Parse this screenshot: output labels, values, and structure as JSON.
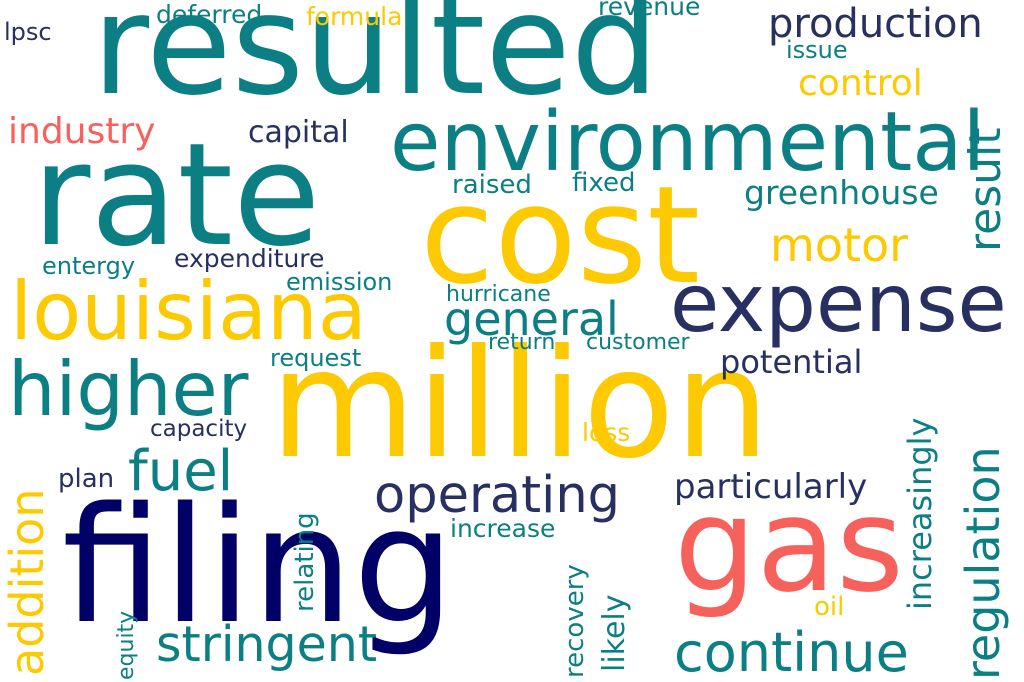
{
  "colors": {
    "teal": "#0b7f84",
    "yellow": "#fdc900",
    "navy": "#000066",
    "slate": "#273060",
    "coral": "#f7615c"
  },
  "words": {
    "resulted": "resulted",
    "rate": "rate",
    "cost": "cost",
    "million": "million",
    "filing": "filing",
    "gas": "gas",
    "environmental": "environmental",
    "louisiana": "louisiana",
    "expense": "expense",
    "higher": "higher",
    "operating": "operating",
    "production": "production",
    "motor": "motor",
    "fuel": "fuel",
    "general": "general",
    "continue": "continue",
    "stringent": "stringent",
    "regulation": "regulation",
    "result": "result",
    "greenhouse": "greenhouse",
    "industry": "industry",
    "control": "control",
    "addition": "addition",
    "increasingly": "increasingly",
    "particularly": "particularly",
    "potential": "potential",
    "capital": "capital",
    "deferred": "deferred",
    "formula": "formula",
    "revenue": "revenue",
    "issue": "issue",
    "lpsc": "lpsc",
    "raised": "raised",
    "fixed": "fixed",
    "entergy": "entergy",
    "expenditure": "expenditure",
    "emission": "emission",
    "hurricane": "hurricane",
    "request": "request",
    "return": "return",
    "customer": "customer",
    "capacity": "capacity",
    "loss": "loss",
    "plan": "plan",
    "increase": "increase",
    "relating": "relating",
    "recovery": "recovery",
    "likely": "likely",
    "equity": "equity",
    "oil": "oil"
  }
}
